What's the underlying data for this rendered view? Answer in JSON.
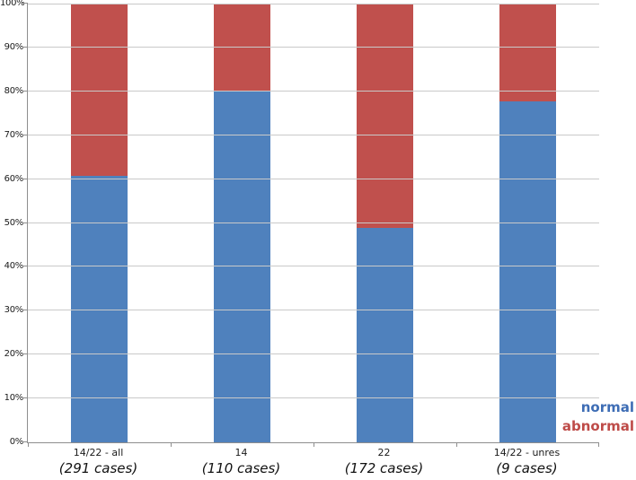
{
  "chart_data": {
    "type": "bar",
    "variant": "stacked-100-percent",
    "title": "",
    "xlabel": "",
    "ylabel": "",
    "categories": [
      "14/22 - all",
      "14",
      "22",
      "14/22 - unres"
    ],
    "category_sublabels": [
      "(291 cases)",
      "(110 cases)",
      "(172 cases)",
      "(9 cases)"
    ],
    "series": [
      {
        "name": "normal",
        "color": "#4F81BD",
        "values": [
          60.8,
          80.0,
          48.8,
          77.8
        ]
      },
      {
        "name": "abnormal",
        "color": "#C0504D",
        "values": [
          39.2,
          20.0,
          51.2,
          22.2
        ]
      }
    ],
    "ylim": [
      0,
      100
    ],
    "ytick_labels": [
      "0%",
      "10%",
      "20%",
      "30%",
      "40%",
      "50%",
      "60%",
      "70%",
      "80%",
      "90%",
      "100%"
    ],
    "grid": true,
    "legend_position": "bottom-right"
  },
  "legend": {
    "items": [
      {
        "label": "normal",
        "text_color": "#3E6DB5"
      },
      {
        "label": "abnormal",
        "text_color": "#BE4B48"
      }
    ]
  },
  "colors": {
    "gridline": "#C9C9C9",
    "axis": "#8E8E8E",
    "background": "#FFFFFF"
  }
}
